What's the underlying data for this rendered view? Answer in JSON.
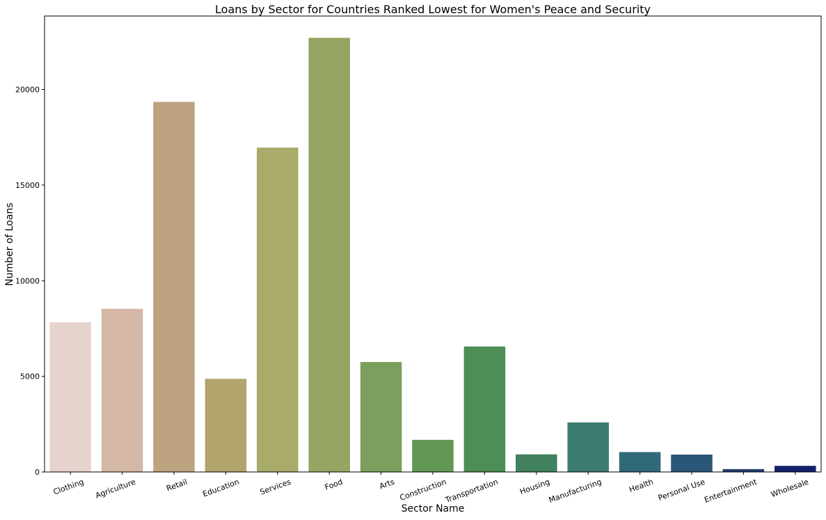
{
  "chart_data": {
    "type": "bar",
    "title": "Loans by Sector for Countries Ranked Lowest for Women's Peace and Security",
    "xlabel": "Sector Name",
    "ylabel": "Number of Loans",
    "categories": [
      "Clothing",
      "Agriculture",
      "Retail",
      "Education",
      "Services",
      "Food",
      "Arts",
      "Construction",
      "Transportation",
      "Housing",
      "Manufacturing",
      "Health",
      "Personal Use",
      "Entertainment",
      "Wholesale"
    ],
    "values": [
      7830,
      8530,
      19350,
      4870,
      16960,
      22700,
      5750,
      1680,
      6560,
      920,
      2590,
      1040,
      910,
      150,
      320
    ],
    "colors": [
      "#e6d3cd",
      "#d4b7a5",
      "#bea381",
      "#b1a46d",
      "#a8ab69",
      "#96a662",
      "#7d9f5d",
      "#629856",
      "#4c8e55",
      "#41815d",
      "#3b7b70",
      "#306a78",
      "#2a5678",
      "#223c6c",
      "#14206b"
    ],
    "yticks": [
      0,
      5000,
      10000,
      15000,
      20000
    ],
    "ylim": [
      0,
      23840
    ],
    "grid": false,
    "legend": "none"
  }
}
